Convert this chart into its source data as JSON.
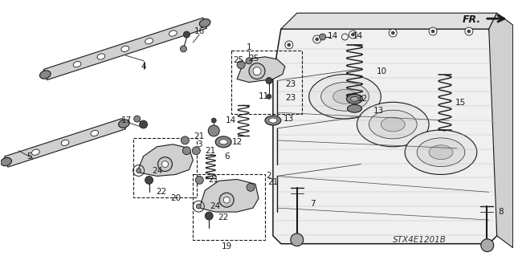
{
  "background_color": "#ffffff",
  "diagram_code": "STX4E1201B",
  "line_color": "#1a1a1a",
  "light_gray": "#d0d0d0",
  "mid_gray": "#888888",
  "dark_gray": "#444444"
}
